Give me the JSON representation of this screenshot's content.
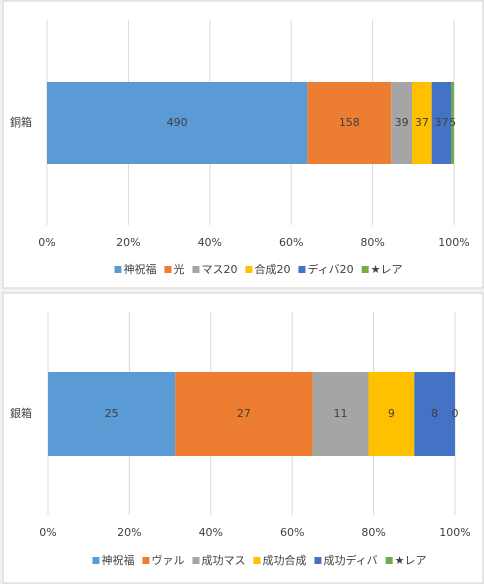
{
  "chart_data": [
    {
      "type": "bar",
      "orientation": "horizontal",
      "stacked": "percent",
      "grid": true,
      "categories": [
        "銅箱"
      ],
      "series": [
        {
          "name": "神祝福",
          "color": "#5b9bd5",
          "values": [
            490
          ]
        },
        {
          "name": "光",
          "color": "#ed7d31",
          "values": [
            158
          ]
        },
        {
          "name": "マス20",
          "color": "#a5a5a5",
          "values": [
            39
          ]
        },
        {
          "name": "合成20",
          "color": "#ffc000",
          "values": [
            37
          ]
        },
        {
          "name": "ディバ20",
          "color": "#4472c4",
          "values": [
            37
          ]
        },
        {
          "name": "★レア",
          "color": "#70ad47",
          "values": [
            5
          ]
        }
      ],
      "xlim": [
        0,
        100
      ],
      "xticks": [
        {
          "value": 0,
          "label": "0%"
        },
        {
          "value": 20,
          "label": "20%"
        },
        {
          "value": 40,
          "label": "40%"
        },
        {
          "value": 60,
          "label": "60%"
        },
        {
          "value": 80,
          "label": "80%"
        },
        {
          "value": 100,
          "label": "100%"
        }
      ],
      "legend": "bottom"
    },
    {
      "type": "bar",
      "orientation": "horizontal",
      "stacked": "percent",
      "grid": true,
      "categories": [
        "銀箱"
      ],
      "series": [
        {
          "name": "神祝福",
          "color": "#5b9bd5",
          "values": [
            25
          ]
        },
        {
          "name": "ヴァル",
          "color": "#ed7d31",
          "values": [
            27
          ]
        },
        {
          "name": "成功マス",
          "color": "#a5a5a5",
          "values": [
            11
          ]
        },
        {
          "name": "成功合成",
          "color": "#ffc000",
          "values": [
            9
          ]
        },
        {
          "name": "成功ディバ",
          "color": "#4472c4",
          "values": [
            8
          ]
        },
        {
          "name": "★レア",
          "color": "#70ad47",
          "values": [
            0
          ]
        }
      ],
      "xlim": [
        0,
        100
      ],
      "xticks": [
        {
          "value": 0,
          "label": "0%"
        },
        {
          "value": 20,
          "label": "20%"
        },
        {
          "value": 40,
          "label": "40%"
        },
        {
          "value": 60,
          "label": "60%"
        },
        {
          "value": 80,
          "label": "80%"
        },
        {
          "value": 100,
          "label": "100%"
        }
      ],
      "legend": "bottom"
    }
  ]
}
